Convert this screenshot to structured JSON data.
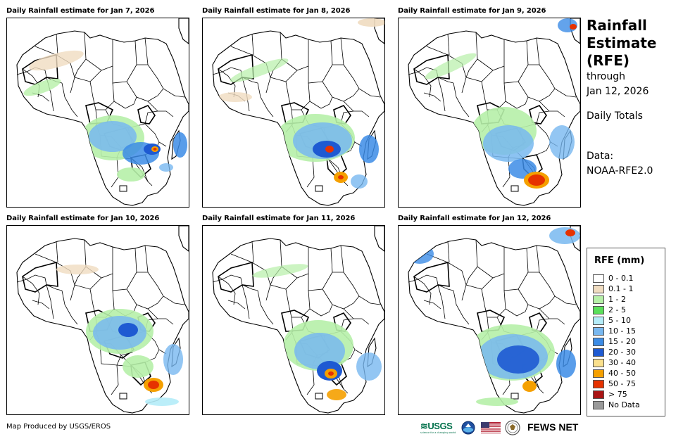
{
  "panels": [
    {
      "title": "Daily Rainfall estimate for Jan 7, 2026"
    },
    {
      "title": "Daily Rainfall estimate for Jan 8, 2026"
    },
    {
      "title": "Daily Rainfall estimate for Jan 9, 2026"
    },
    {
      "title": "Daily Rainfall estimate for Jan 10, 2026"
    },
    {
      "title": "Daily Rainfall estimate for Jan 11, 2026"
    },
    {
      "title": "Daily Rainfall estimate for Jan 12, 2026"
    }
  ],
  "heading": {
    "line1": "Rainfall",
    "line2": "Estimate",
    "line3": "(RFE)",
    "line4": "through",
    "line5": "Jan 12, 2026",
    "line6": "Daily Totals",
    "line7": "Data:",
    "line8": "NOAA-RFE2.0"
  },
  "legend": {
    "title": "RFE (mm)",
    "items": [
      {
        "label": "0 - 0.1",
        "color": "#ffffff"
      },
      {
        "label": "0.1 - 1",
        "color": "#f0dcc0"
      },
      {
        "label": "1 - 2",
        "color": "#b6f0a8"
      },
      {
        "label": "2 - 5",
        "color": "#5ae05a"
      },
      {
        "label": "5 - 10",
        "color": "#b4ecf8"
      },
      {
        "label": "10 - 15",
        "color": "#78b8f0"
      },
      {
        "label": "15 - 20",
        "color": "#3c8ce6"
      },
      {
        "label": "20 - 30",
        "color": "#1e5ad2"
      },
      {
        "label": "30 - 40",
        "color": "#fae08c"
      },
      {
        "label": "40 - 50",
        "color": "#f5a000"
      },
      {
        "label": "50 - 75",
        "color": "#e63200"
      },
      {
        "label": "> 75",
        "color": "#aa1414"
      },
      {
        "label": "No Data",
        "color": "#9a9a9a"
      }
    ]
  },
  "credit": "Map Produced by USGS/EROS",
  "logos": {
    "usgs": "≋USGS",
    "usgs_tagline": "science for a changing world",
    "fews": "FEWS NET"
  }
}
